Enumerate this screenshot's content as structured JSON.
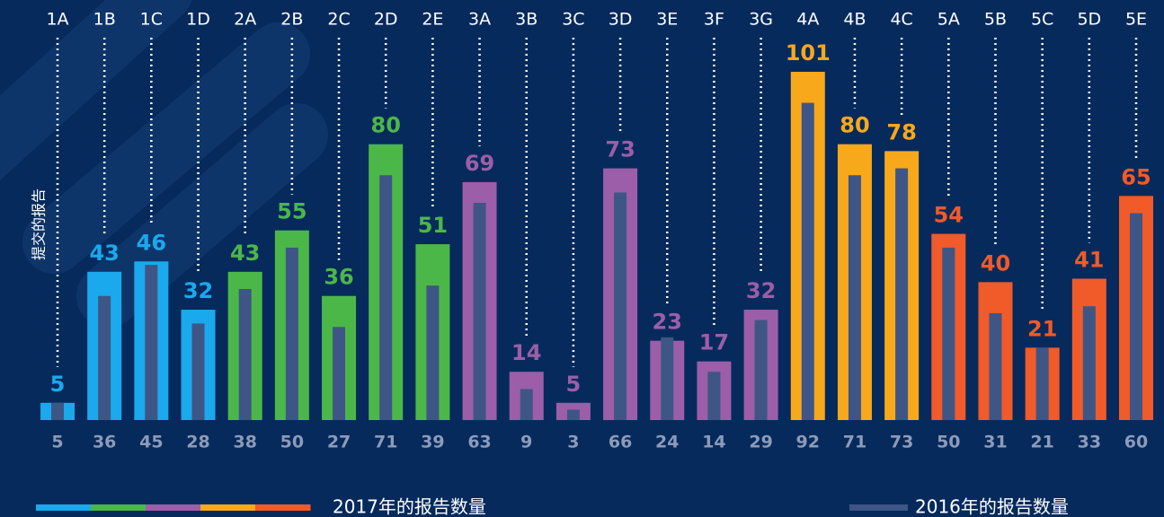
{
  "chart_data": {
    "type": "bar",
    "y_label": "提交的报告",
    "categories": [
      "1A",
      "1B",
      "1C",
      "1D",
      "2A",
      "2B",
      "2C",
      "2D",
      "2E",
      "3A",
      "3B",
      "3C",
      "3D",
      "3E",
      "3F",
      "3G",
      "4A",
      "4B",
      "4C",
      "5A",
      "5B",
      "5C",
      "5D",
      "5E"
    ],
    "series": [
      {
        "name": "2017年的报告数量",
        "colors": [
          "#1aa9ec",
          "#1aa9ec",
          "#1aa9ec",
          "#1aa9ec",
          "#4cb749",
          "#4cb749",
          "#4cb749",
          "#4cb749",
          "#4cb749",
          "#9c5ea8",
          "#9c5ea8",
          "#9c5ea8",
          "#9c5ea8",
          "#9c5ea8",
          "#9c5ea8",
          "#9c5ea8",
          "#f8a81b",
          "#f8a81b",
          "#f8a81b",
          "#f15a29",
          "#f15a29",
          "#f15a29",
          "#f15a29",
          "#f15a29"
        ],
        "values": [
          5,
          43,
          46,
          32,
          43,
          55,
          36,
          80,
          51,
          69,
          14,
          5,
          73,
          23,
          17,
          32,
          101,
          80,
          78,
          54,
          40,
          21,
          41,
          65
        ]
      },
      {
        "name": "2016年的报告数量",
        "color": "#3d5686",
        "values": [
          5,
          36,
          45,
          28,
          38,
          50,
          27,
          71,
          39,
          63,
          9,
          3,
          66,
          24,
          14,
          29,
          92,
          71,
          73,
          50,
          31,
          21,
          33,
          60
        ]
      }
    ]
  }
}
